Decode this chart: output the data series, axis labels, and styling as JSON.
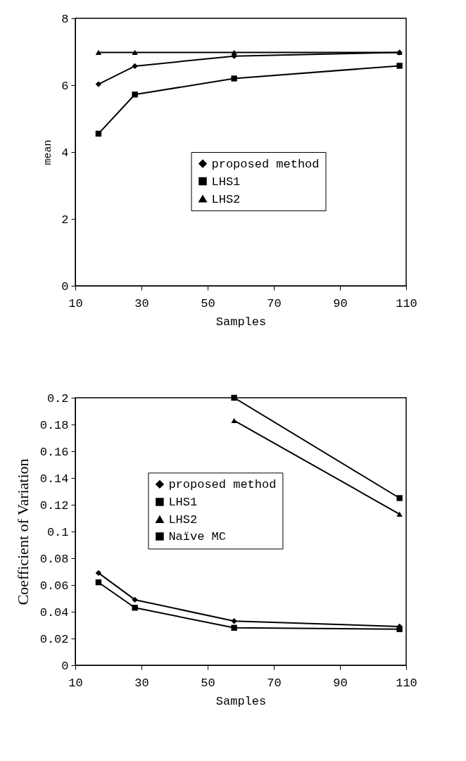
{
  "chart_data": [
    {
      "type": "line",
      "xlabel": "Samples",
      "ylabel": "mean",
      "x": [
        17,
        28,
        58,
        108
      ],
      "xlim": [
        10,
        110
      ],
      "xticks": [
        10,
        30,
        50,
        70,
        90,
        110
      ],
      "ylim": [
        0,
        8
      ],
      "yticks": [
        0,
        2,
        4,
        6,
        8
      ],
      "grid": false,
      "legend": "center",
      "series": [
        {
          "name": "proposed method",
          "color": "#000000",
          "marker": "diamond",
          "values": [
            6.03,
            6.57,
            6.87,
            6.98
          ]
        },
        {
          "name": "LHS1",
          "color": "#000000",
          "marker": "square",
          "values": [
            4.55,
            5.72,
            6.2,
            6.58
          ]
        },
        {
          "name": "LHS2",
          "color": "#000000",
          "marker": "triangle",
          "values": [
            6.98,
            6.98,
            6.98,
            6.98
          ]
        }
      ]
    },
    {
      "type": "line",
      "xlabel": "Samples",
      "ylabel": "Coefficient of Variation",
      "x": [
        17,
        28,
        58,
        108
      ],
      "xlim": [
        10,
        110
      ],
      "xticks": [
        10,
        30,
        50,
        70,
        90,
        110
      ],
      "ylim": [
        0,
        0.2
      ],
      "yticks": [
        0,
        0.02,
        0.04,
        0.06,
        0.08,
        0.1,
        0.12,
        0.14,
        0.16,
        0.18,
        0.2
      ],
      "grid": false,
      "legend": "center left",
      "series": [
        {
          "name": "proposed method",
          "color": "#000000",
          "marker": "diamond",
          "values": [
            0.069,
            0.049,
            0.033,
            0.029
          ]
        },
        {
          "name": "LHS1",
          "color": "#000000",
          "marker": "square",
          "values": [
            0.062,
            0.043,
            0.028,
            0.027
          ]
        },
        {
          "name": "LHS2",
          "color": "#000000",
          "marker": "triangle",
          "values": [
            null,
            null,
            0.183,
            0.113
          ]
        },
        {
          "name": "Naïve MC",
          "color": "#000000",
          "marker": "square",
          "values": [
            null,
            null,
            0.2,
            0.125
          ]
        }
      ]
    }
  ]
}
